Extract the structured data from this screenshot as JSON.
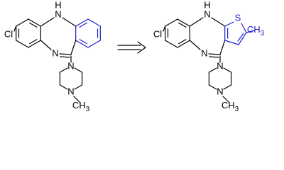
{
  "molecules": [
    {
      "atoms": [
        "H",
        "N",
        "Cl",
        "N",
        "N",
        "N",
        "CH3"
      ]
    },
    {
      "atoms": [
        "H",
        "N",
        "S",
        "CH3",
        "Cl",
        "N",
        "N",
        "N",
        "CH3"
      ]
    }
  ]
}
